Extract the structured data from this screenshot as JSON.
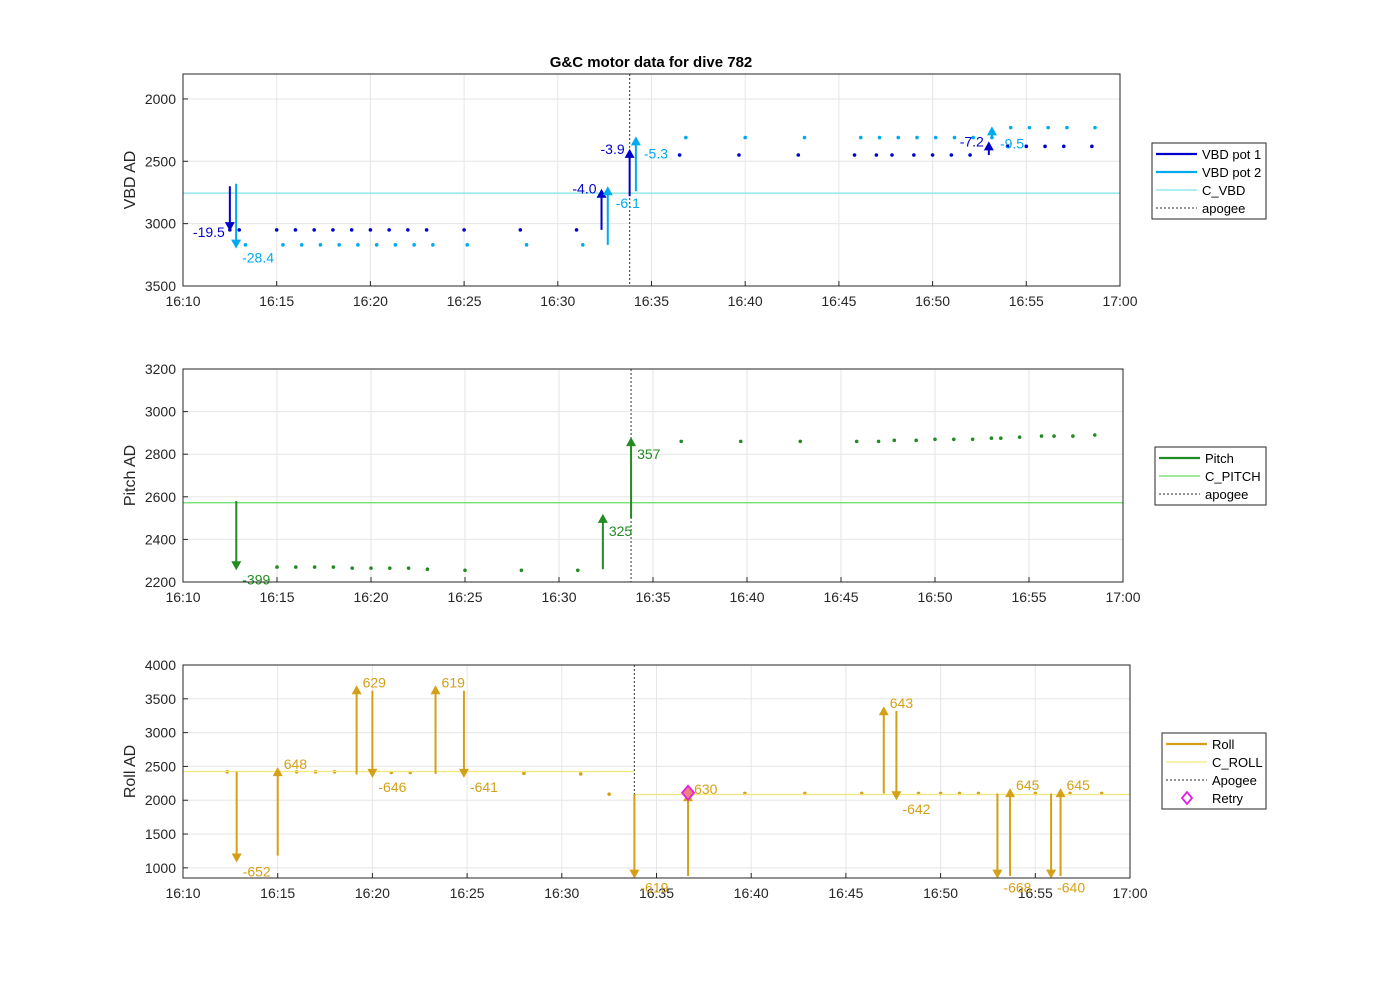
{
  "figure_title": "G&C motor data for dive 782",
  "chart_data": [
    {
      "type": "scatter",
      "panel": "vbd",
      "title": "G&C motor data for dive 782",
      "ylabel": "VBD AD",
      "xlim": [
        "16:10",
        "17:00"
      ],
      "ylim": [
        3500,
        1800
      ],
      "y_reversed": true,
      "yticks": [
        2000,
        2500,
        3000,
        3500
      ],
      "xticks": [
        "16:10",
        "16:15",
        "16:20",
        "16:25",
        "16:30",
        "16:35",
        "16:40",
        "16:45",
        "16:50",
        "16:55",
        "17:00"
      ],
      "grid": true,
      "legend_placement": "outside-right",
      "legend": [
        "VBD pot 1",
        "VBD pot 2",
        "C_VBD",
        "apogee"
      ],
      "series": [
        {
          "name": "VBD pot 1",
          "color": "#0000CC",
          "x": [
            "16:12:30",
            "16:13:00",
            "16:15:00",
            "16:16:00",
            "16:17:00",
            "16:18:00",
            "16:19:00",
            "16:20:00",
            "16:21:00",
            "16:22:00",
            "16:23:00",
            "16:25:00",
            "16:28:00",
            "16:31:00",
            "16:36:30",
            "16:39:40",
            "16:42:50",
            "16:45:50",
            "16:47:00",
            "16:47:50",
            "16:49:00",
            "16:50:00",
            "16:51:00",
            "16:52:00",
            "16:53:00",
            "16:54:00",
            "16:55:00",
            "16:56:00",
            "16:57:00",
            "16:58:30"
          ],
          "y": [
            3050,
            3050,
            3050,
            3050,
            3050,
            3050,
            3050,
            3050,
            3050,
            3050,
            3050,
            3050,
            3050,
            3050,
            2450,
            2450,
            2450,
            2450,
            2450,
            2450,
            2450,
            2450,
            2450,
            2450,
            2380,
            2380,
            2380,
            2380,
            2380,
            2380
          ]
        },
        {
          "name": "VBD pot 2",
          "color": "#00AAEE",
          "x": [
            "16:13:20",
            "16:15:20",
            "16:16:20",
            "16:17:20",
            "16:18:20",
            "16:19:20",
            "16:20:20",
            "16:21:20",
            "16:22:20",
            "16:23:20",
            "16:25:10",
            "16:28:20",
            "16:31:20",
            "16:36:50",
            "16:40:00",
            "16:43:10",
            "16:46:10",
            "16:47:10",
            "16:48:10",
            "16:49:10",
            "16:50:10",
            "16:51:10",
            "16:52:10",
            "16:53:10",
            "16:54:10",
            "16:55:10",
            "16:56:10",
            "16:57:10",
            "16:58:40"
          ],
          "y": [
            3170,
            3170,
            3170,
            3170,
            3170,
            3170,
            3170,
            3170,
            3170,
            3170,
            3170,
            3170,
            3170,
            2310,
            2310,
            2310,
            2310,
            2310,
            2310,
            2310,
            2310,
            2310,
            2310,
            2310,
            2230,
            2230,
            2230,
            2230,
            2230
          ]
        },
        {
          "name": "C_VBD",
          "color": "#7FE3E8",
          "x": [
            "16:10:00",
            "17:00:00"
          ],
          "y": [
            2755,
            2755
          ]
        }
      ],
      "arrows": [
        {
          "series": "VBD pot 1",
          "x": "16:12:30",
          "from": 2700,
          "to": 3060,
          "label": "-19.5",
          "color": "#0000CC"
        },
        {
          "series": "VBD pot 2",
          "x": "16:12:50",
          "from": 2680,
          "to": 3200,
          "label": "-28.4",
          "color": "#00AAEE"
        },
        {
          "series": "VBD pot 1",
          "x": "16:32:20",
          "from": 3050,
          "to": 2720,
          "label": "-4.0",
          "color": "#0000CC"
        },
        {
          "series": "VBD pot 2",
          "x": "16:32:40",
          "from": 3170,
          "to": 2700,
          "label": "-6.1",
          "color": "#00AAEE"
        },
        {
          "series": "VBD pot 1",
          "x": "16:33:50",
          "from": 2780,
          "to": 2400,
          "label": "-3.9",
          "color": "#0000CC"
        },
        {
          "series": "VBD pot 2",
          "x": "16:34:10",
          "from": 2740,
          "to": 2300,
          "label": "-5.3",
          "color": "#00AAEE"
        },
        {
          "series": "VBD pot 1",
          "x": "16:53:00",
          "from": 2450,
          "to": 2340,
          "label": "-7.2",
          "color": "#0000CC"
        },
        {
          "series": "VBD pot 2",
          "x": "16:53:10",
          "from": 2310,
          "to": 2220,
          "label": "-9.5",
          "color": "#00AAEE"
        }
      ],
      "apogee": "16:33:50"
    },
    {
      "type": "scatter",
      "panel": "pitch",
      "ylabel": "Pitch AD",
      "xlim": [
        "16:10",
        "17:00"
      ],
      "ylim": [
        2200,
        3200
      ],
      "yticks": [
        2200,
        2400,
        2600,
        2800,
        3000,
        3200
      ],
      "xticks": [
        "16:10",
        "16:15",
        "16:20",
        "16:25",
        "16:30",
        "16:35",
        "16:40",
        "16:45",
        "16:50",
        "16:55",
        "17:00"
      ],
      "grid": true,
      "legend_placement": "outside-right",
      "legend": [
        "Pitch",
        "C_PITCH",
        "apogee"
      ],
      "series": [
        {
          "name": "Pitch",
          "color": "#228B22",
          "x": [
            "16:15:00",
            "16:16:00",
            "16:17:00",
            "16:18:00",
            "16:19:00",
            "16:20:00",
            "16:21:00",
            "16:22:00",
            "16:23:00",
            "16:25:00",
            "16:28:00",
            "16:31:00",
            "16:36:30",
            "16:39:40",
            "16:42:50",
            "16:45:50",
            "16:47:00",
            "16:47:50",
            "16:49:00",
            "16:50:00",
            "16:51:00",
            "16:52:00",
            "16:53:00",
            "16:53:30",
            "16:54:30",
            "16:55:40",
            "16:56:20",
            "16:57:20",
            "16:58:30"
          ],
          "y": [
            2270,
            2270,
            2270,
            2270,
            2265,
            2265,
            2265,
            2265,
            2260,
            2255,
            2255,
            2255,
            2860,
            2860,
            2860,
            2860,
            2860,
            2865,
            2865,
            2870,
            2870,
            2870,
            2875,
            2875,
            2880,
            2885,
            2885,
            2885,
            2890
          ]
        },
        {
          "name": "C_PITCH",
          "color": "#66DD66",
          "x": [
            "16:10:00",
            "17:00:00"
          ],
          "y": [
            2572,
            2572
          ]
        }
      ],
      "arrows": [
        {
          "series": "Pitch",
          "x": "16:12:50",
          "from": 2580,
          "to": 2255,
          "label": "-399",
          "color": "#228B22"
        },
        {
          "series": "Pitch",
          "x": "16:32:20",
          "from": 2260,
          "to": 2520,
          "label": "325",
          "color": "#228B22"
        },
        {
          "series": "Pitch",
          "x": "16:33:50",
          "from": 2500,
          "to": 2880,
          "label": "357",
          "color": "#228B22"
        }
      ],
      "apogee": "16:33:50"
    },
    {
      "type": "scatter",
      "panel": "roll",
      "ylabel": "Roll AD",
      "xlim": [
        "16:10",
        "17:00"
      ],
      "ylim": [
        850,
        4000
      ],
      "yticks": [
        1000,
        1500,
        2000,
        2500,
        3000,
        3500,
        4000
      ],
      "xticks": [
        "16:10",
        "16:15",
        "16:20",
        "16:25",
        "16:30",
        "16:35",
        "16:40",
        "16:45",
        "16:50",
        "16:55",
        "17:00"
      ],
      "grid": true,
      "legend_placement": "outside-right",
      "legend": [
        "Roll",
        "C_ROLL",
        "Apogee",
        "Retry"
      ],
      "series": [
        {
          "name": "Roll",
          "color": "#D4A017",
          "x": [
            "16:12:20",
            "16:16:00",
            "16:17:00",
            "16:18:00",
            "16:21:00",
            "16:22:00",
            "16:28:00",
            "16:31:00",
            "16:32:30",
            "16:39:40",
            "16:42:50",
            "16:45:50",
            "16:48:50",
            "16:50:00",
            "16:51:00",
            "16:52:00",
            "16:55:00",
            "16:56:50",
            "16:58:30"
          ],
          "y": [
            2420,
            2420,
            2420,
            2420,
            2410,
            2410,
            2400,
            2390,
            2090,
            2100,
            2100,
            2100,
            2100,
            2100,
            2100,
            2100,
            2100,
            2100,
            2100
          ]
        },
        {
          "name": "C_ROLL",
          "color": "#F5E67A",
          "segments": [
            {
              "x": [
                "16:10:00",
                "16:33:50"
              ],
              "y": [
                2425,
                2425
              ]
            },
            {
              "x": [
                "16:33:50",
                "17:00:00"
              ],
              "y": [
                2085,
                2085
              ]
            }
          ]
        }
      ],
      "arrows": [
        {
          "series": "Roll",
          "x": "16:12:50",
          "from": 2420,
          "to": 1080,
          "label": "-652",
          "color": "#D4A017"
        },
        {
          "series": "Roll",
          "x": "16:15:00",
          "from": 1180,
          "to": 2490,
          "label": "648",
          "color": "#D4A017"
        },
        {
          "series": "Roll",
          "x": "16:19:10",
          "from": 2380,
          "to": 3700,
          "label": "629",
          "color": "#D4A017"
        },
        {
          "series": "Roll",
          "x": "16:20:00",
          "from": 3620,
          "to": 2330,
          "label": "-646",
          "color": "#D4A017"
        },
        {
          "series": "Roll",
          "x": "16:23:20",
          "from": 2390,
          "to": 3700,
          "label": "619",
          "color": "#D4A017"
        },
        {
          "series": "Roll",
          "x": "16:24:50",
          "from": 3620,
          "to": 2330,
          "label": "-641",
          "color": "#D4A017"
        },
        {
          "series": "Roll",
          "x": "16:33:50",
          "from": 2090,
          "to": 840,
          "label": "-619",
          "color": "#D4A017"
        },
        {
          "series": "Roll",
          "x": "16:36:40",
          "from": 880,
          "to": 2120,
          "label": "630",
          "color": "#D4A017"
        },
        {
          "series": "Roll",
          "x": "16:47:00",
          "from": 2100,
          "to": 3390,
          "label": "643",
          "color": "#D4A017"
        },
        {
          "series": "Roll",
          "x": "16:47:40",
          "from": 3320,
          "to": 2000,
          "label": "-642",
          "color": "#D4A017"
        },
        {
          "series": "Roll",
          "x": "16:53:00",
          "from": 2100,
          "to": 840,
          "label": "-668",
          "color": "#D4A017"
        },
        {
          "series": "Roll",
          "x": "16:53:40",
          "from": 880,
          "to": 2180,
          "label": "645",
          "color": "#D4A017"
        },
        {
          "series": "Roll",
          "x": "16:55:50",
          "from": 2100,
          "to": 840,
          "label": "-640",
          "color": "#D4A017"
        },
        {
          "series": "Roll",
          "x": "16:56:20",
          "from": 880,
          "to": 2180,
          "label": "645",
          "color": "#D4A017"
        }
      ],
      "retry": [
        {
          "x": "16:36:40",
          "y": 2110
        }
      ],
      "apogee": "16:33:50"
    }
  ]
}
